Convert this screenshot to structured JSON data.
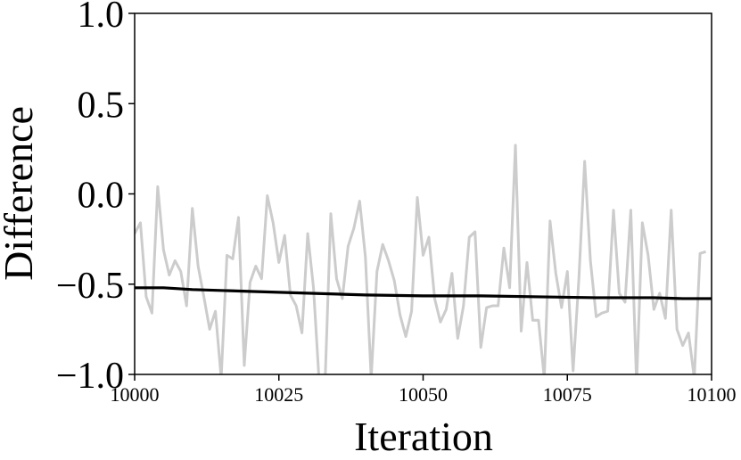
{
  "chart_data": {
    "type": "line",
    "xlabel": "Iteration",
    "ylabel": "Difference",
    "xlim": [
      10000,
      10100
    ],
    "ylim": [
      -1.0,
      1.0
    ],
    "x_ticks": [
      10000,
      10025,
      10050,
      10075,
      10100
    ],
    "x_tick_labels": [
      "10000",
      "10025",
      "10050",
      "10075",
      "10100"
    ],
    "y_ticks": [
      -1.0,
      -0.5,
      0.0,
      0.5,
      1.0
    ],
    "y_tick_labels": [
      "−1.0",
      "−0.5",
      "0.0",
      "0.5",
      "1.0"
    ],
    "grid": false,
    "series": [
      {
        "color": "#cccccc",
        "x_start": 10000,
        "x_step": 1,
        "values": [
          -0.22,
          -0.16,
          -0.57,
          -0.66,
          0.04,
          -0.31,
          -0.45,
          -0.37,
          -0.43,
          -0.62,
          -0.08,
          -0.4,
          -0.57,
          -0.75,
          -0.65,
          -1.02,
          -0.34,
          -0.36,
          -0.13,
          -0.95,
          -0.49,
          -0.4,
          -0.47,
          -0.01,
          -0.16,
          -0.38,
          -0.23,
          -0.56,
          -0.62,
          -0.77,
          -0.22,
          -0.52,
          -1.05,
          -1.05,
          -0.11,
          -0.47,
          -0.58,
          -0.29,
          -0.19,
          -0.04,
          -0.35,
          -1.02,
          -0.43,
          -0.28,
          -0.37,
          -0.48,
          -0.67,
          -0.79,
          -0.65,
          -0.02,
          -0.34,
          -0.24,
          -0.58,
          -0.71,
          -0.64,
          -0.44,
          -0.8,
          -0.62,
          -0.24,
          -0.21,
          -0.85,
          -0.63,
          -0.62,
          -0.62,
          -0.3,
          -0.52,
          0.27,
          -0.76,
          -0.38,
          -0.7,
          -0.7,
          -1.02,
          -0.15,
          -0.44,
          -0.63,
          -0.43,
          -0.98,
          -0.47,
          0.18,
          -0.37,
          -0.68,
          -0.66,
          -0.65,
          -0.09,
          -0.55,
          -0.6,
          -0.09,
          -1.05,
          -0.16,
          -0.34,
          -0.64,
          -0.55,
          -0.69,
          -0.09,
          -0.75,
          -0.84,
          -0.77,
          -1.02,
          -0.33,
          -0.32
        ]
      },
      {
        "color": "#000000",
        "x": [
          10000,
          10005,
          10010,
          10020,
          10030,
          10040,
          10050,
          10060,
          10070,
          10080,
          10090,
          10095,
          10100
        ],
        "values": [
          -0.52,
          -0.52,
          -0.53,
          -0.54,
          -0.55,
          -0.56,
          -0.565,
          -0.565,
          -0.57,
          -0.575,
          -0.575,
          -0.58,
          -0.58
        ]
      }
    ]
  }
}
